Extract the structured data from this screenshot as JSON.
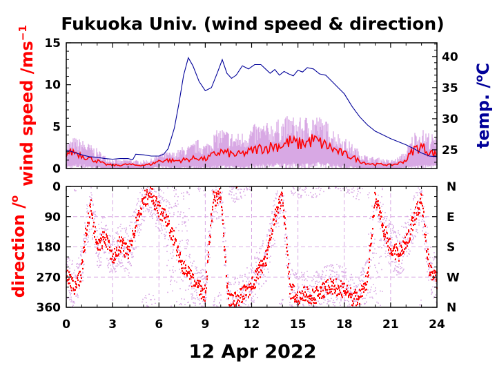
{
  "title": "Fukuoka Univ. (wind speed & direction)",
  "date_label": "12 Apr 2022",
  "colors": {
    "wind_mean": "#ff0000",
    "wind_range": "#d8a8e4",
    "temperature": "#000099",
    "speed_label": "#ff0000",
    "temp_label": "#000099",
    "direction_label": "#ff0000",
    "grid": "#d8a8e4"
  },
  "chart_data": [
    {
      "type": "line",
      "panel": "top",
      "ylabel": "wind speed /ms",
      "ylabel_superscript": "−1",
      "y2label": "temp. /",
      "y2label_superscript": "o",
      "y2label_unit": "C",
      "xlim": [
        0,
        24
      ],
      "ylim": [
        0,
        15
      ],
      "y2lim": [
        22,
        42.2
      ],
      "x_ticks": [
        "0",
        "3",
        "6",
        "9",
        "12",
        "15",
        "18",
        "21",
        "24"
      ],
      "y_ticks": [
        "0",
        "5",
        "10",
        "15"
      ],
      "y2_ticks": [
        "25",
        "30",
        "35",
        "40"
      ],
      "series": [
        {
          "key": "temperature",
          "axis": "right",
          "x": [
            0,
            0.5,
            1,
            1.5,
            2,
            2.5,
            3,
            3.5,
            4,
            4.3,
            4.5,
            5,
            5.5,
            6,
            6.3,
            6.6,
            7,
            7.3,
            7.6,
            7.9,
            8.2,
            8.6,
            9,
            9.4,
            9.8,
            10.1,
            10.4,
            10.7,
            11,
            11.4,
            11.8,
            12.2,
            12.6,
            12.9,
            13.2,
            13.5,
            13.8,
            14.1,
            14.4,
            14.7,
            15,
            15.3,
            15.6,
            16,
            16.4,
            16.8,
            17.2,
            17.6,
            18,
            18.5,
            19,
            19.5,
            20,
            20.5,
            21,
            21.5,
            22,
            22.5,
            23,
            23.5,
            24
          ],
          "y": [
            25.0,
            24.6,
            24.2,
            23.9,
            23.8,
            23.6,
            23.5,
            23.6,
            23.6,
            23.4,
            24.3,
            24.2,
            24.0,
            24.0,
            24.3,
            25.2,
            28.5,
            32.5,
            37.0,
            39.8,
            38.5,
            36.0,
            34.5,
            35.0,
            37.5,
            39.5,
            37.3,
            36.5,
            37.0,
            38.5,
            38.0,
            38.7,
            38.7,
            38.0,
            37.3,
            37.9,
            37.0,
            37.6,
            37.2,
            36.9,
            37.8,
            37.5,
            38.2,
            38.0,
            37.2,
            37.0,
            36.0,
            35.0,
            34.0,
            32.0,
            30.3,
            29.0,
            28.0,
            27.4,
            26.8,
            26.3,
            25.8,
            25.2,
            24.5,
            24.0,
            23.9
          ]
        },
        {
          "key": "wind_range",
          "axis": "left",
          "x": [
            0,
            0.5,
            1,
            1.5,
            2,
            2.5,
            3,
            3.5,
            4,
            4.5,
            5,
            5.5,
            6,
            6.5,
            7,
            7.5,
            8,
            8.5,
            9,
            9.5,
            10,
            10.5,
            11,
            11.5,
            12,
            12.5,
            13,
            13.5,
            14,
            14.5,
            15,
            15.5,
            16,
            16.5,
            17,
            17.5,
            18,
            18.5,
            19,
            19.5,
            20,
            20.5,
            21,
            21.5,
            22,
            22.5,
            23,
            23.5,
            24
          ],
          "y_low": [
            0.4,
            0.5,
            0.6,
            0.4,
            0.2,
            0.1,
            0.1,
            0.1,
            0.1,
            0.1,
            0.1,
            0.1,
            0.3,
            0.3,
            0.2,
            0.2,
            0.3,
            0.3,
            0.2,
            0.4,
            0.4,
            0.4,
            0.3,
            0.3,
            0.5,
            0.5,
            0.6,
            0.7,
            0.7,
            0.8,
            0.6,
            0.8,
            0.7,
            0.8,
            0.7,
            0.5,
            0.4,
            0.3,
            0.1,
            0.1,
            0.1,
            0.1,
            0.1,
            0.1,
            0.2,
            0.4,
            0.4,
            0.5,
            0.5
          ],
          "y_high": [
            3.2,
            3.8,
            3.5,
            3.0,
            2.4,
            1.6,
            1.2,
            1.0,
            1.2,
            1.0,
            1.0,
            1.2,
            1.8,
            2.0,
            2.0,
            2.6,
            2.8,
            3.5,
            3.0,
            4.2,
            5.0,
            4.6,
            4.2,
            4.5,
            5.2,
            5.5,
            5.5,
            5.8,
            6.0,
            6.5,
            6.0,
            6.3,
            6.8,
            6.2,
            5.5,
            4.5,
            3.8,
            3.0,
            2.2,
            1.5,
            1.4,
            1.2,
            1.0,
            1.4,
            2.2,
            4.5,
            4.8,
            4.4,
            3.8
          ]
        },
        {
          "key": "wind_mean",
          "axis": "left",
          "x": [
            0,
            0.5,
            1,
            1.5,
            2,
            2.5,
            3,
            3.5,
            4,
            4.5,
            5,
            5.5,
            6,
            6.5,
            7,
            7.5,
            8,
            8.5,
            9,
            9.5,
            10,
            10.5,
            11,
            11.5,
            12,
            12.5,
            13,
            13.5,
            14,
            14.5,
            15,
            15.5,
            16,
            16.5,
            17,
            17.5,
            18,
            18.5,
            19,
            19.5,
            20,
            20.5,
            21,
            21.5,
            22,
            22.5,
            23,
            23.5,
            24
          ],
          "y": [
            1.8,
            2.0,
            1.6,
            1.2,
            0.9,
            0.5,
            0.4,
            0.4,
            0.5,
            0.4,
            0.4,
            0.5,
            0.9,
            1.0,
            0.9,
            1.0,
            1.1,
            1.3,
            1.1,
            1.6,
            2.0,
            1.8,
            1.6,
            1.8,
            2.1,
            2.4,
            2.5,
            2.7,
            2.8,
            3.2,
            2.9,
            3.1,
            3.4,
            3.0,
            2.6,
            2.1,
            1.7,
            1.4,
            0.9,
            0.6,
            0.5,
            0.5,
            0.4,
            0.6,
            1.0,
            2.3,
            2.6,
            2.0,
            1.6
          ]
        }
      ]
    },
    {
      "type": "scatter",
      "panel": "bottom",
      "ylabel": "direction /",
      "ylabel_superscript": "o",
      "xlim": [
        0,
        24
      ],
      "ylim": [
        0,
        360
      ],
      "y_inverted": true,
      "x_ticks": [
        "0",
        "3",
        "6",
        "9",
        "12",
        "15",
        "18",
        "21",
        "24"
      ],
      "y_ticks": [
        "0",
        "90",
        "180",
        "270",
        "360"
      ],
      "y2_ticks": [
        "N",
        "E",
        "S",
        "W",
        "N"
      ],
      "series": [
        {
          "key": "direction",
          "x": [
            0,
            0.3,
            0.6,
            1,
            1.3,
            1.6,
            2,
            2.5,
            3,
            3.5,
            4,
            4.5,
            5,
            5.5,
            6,
            6.5,
            7,
            7.5,
            8,
            8.5,
            9,
            9.5,
            10,
            10.5,
            11,
            11.5,
            12,
            12.5,
            13,
            13.5,
            14,
            14.5,
            15,
            15.5,
            16,
            16.5,
            17,
            17.5,
            18,
            18.5,
            19,
            19.5,
            20,
            20.5,
            21,
            21.5,
            22,
            22.5,
            23,
            23.5,
            24
          ],
          "y": [
            260,
            280,
            310,
            250,
            130,
            60,
            180,
            150,
            210,
            170,
            200,
            120,
            40,
            20,
            70,
            100,
            160,
            230,
            270,
            300,
            320,
            40,
            20,
            330,
            340,
            320,
            300,
            250,
            210,
            100,
            20,
            310,
            330,
            320,
            330,
            310,
            300,
            300,
            310,
            330,
            330,
            280,
            30,
            120,
            180,
            200,
            170,
            100,
            40,
            240,
            280
          ]
        }
      ]
    }
  ]
}
